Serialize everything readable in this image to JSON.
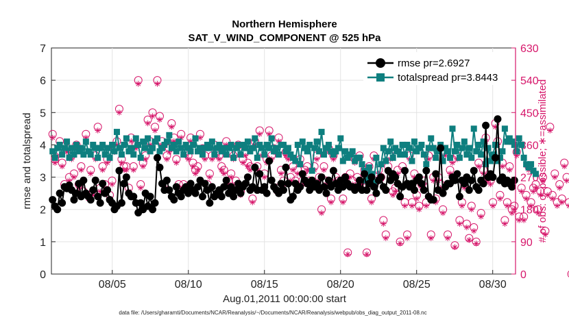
{
  "chart_data": {
    "type": "line",
    "title": "Northern Hemisphere",
    "subtitle": "SAT_V_WIND_COMPONENT @ 525 hPa",
    "xlabel": "Aug.01,2011 00:00:00 start",
    "ylabel": "rmse and totalspread",
    "y2label": "# of obs: o=possible; ∗=assimilated",
    "x_ticks": [
      "08/05",
      "08/10",
      "08/15",
      "08/20",
      "08/25",
      "08/30"
    ],
    "x_tick_days": [
      5,
      10,
      15,
      20,
      25,
      30
    ],
    "xlim": [
      1,
      31.5
    ],
    "ylim": [
      0,
      7
    ],
    "y_ticks": [
      "0",
      "1",
      "2",
      "3",
      "4",
      "5",
      "6",
      "7"
    ],
    "y2lim": [
      0,
      630
    ],
    "y2_ticks": [
      "0",
      "90",
      "180",
      "270",
      "360",
      "450",
      "540",
      "630"
    ],
    "footnote": "data file: /Users/gharamti/Documents/NCAR/Reanalysis/~/Documents/NCAR/Reanalysis/webpub/obs_diag_output_2011-08.nc",
    "colors": {
      "rmse": "#000000",
      "totalspread": "#0e7f7f",
      "obs": "#d6166a"
    },
    "series": [
      {
        "name": "rmse pr=2.6927",
        "values": [
          2.3,
          2.1,
          2.0,
          2.5,
          2.2,
          2.7,
          2.65,
          2.75,
          2.6,
          2.3,
          2.5,
          2.8,
          2.4,
          2.9,
          2.5,
          2.4,
          2.3,
          2.6,
          2.9,
          2.4,
          2.2,
          2.8,
          2.5,
          2.6,
          2.3,
          2.2,
          2.0,
          2.1,
          3.2,
          2.2,
          2.8,
          3.0,
          2.5,
          2.4,
          2.4,
          2.2,
          1.9,
          2.2,
          2.0,
          2.5,
          2.1,
          2.4,
          2.0,
          2.2,
          3.6,
          3.3,
          2.8,
          2.6,
          2.9,
          2.6,
          2.4,
          2.3,
          2.7,
          2.5,
          2.4,
          2.6,
          2.7,
          2.5,
          2.8,
          2.6,
          2.5,
          2.7,
          2.9,
          2.4,
          2.8,
          2.6,
          2.2,
          2.7,
          2.4,
          2.5,
          2.6,
          2.4,
          2.7,
          2.9,
          2.5,
          2.7,
          2.4,
          2.6,
          2.8,
          2.5,
          2.7,
          2.8,
          3.0,
          2.6,
          2.7,
          3.3,
          2.6,
          3.1,
          2.6,
          2.7,
          2.5,
          3.5,
          2.9,
          2.7,
          2.6,
          2.5,
          2.8,
          2.6,
          3.3,
          2.8,
          2.3,
          2.4,
          2.8,
          2.6,
          2.7,
          3.1,
          2.9,
          2.8,
          2.6,
          2.9,
          2.7,
          2.8,
          2.6,
          3.0,
          2.7,
          2.5,
          2.9,
          2.7,
          3.2,
          2.8,
          2.6,
          2.9,
          2.7,
          3.0,
          2.8,
          2.7,
          2.7,
          2.6,
          2.7,
          2.9,
          2.6,
          3.1,
          2.6,
          2.8,
          3.0,
          2.7,
          2.5,
          2.9,
          3.0,
          2.7,
          2.6,
          3.2,
          2.9,
          3.1,
          3.0,
          2.8,
          2.4,
          2.7,
          3.2,
          2.8,
          2.7,
          2.8,
          2.6,
          2.9,
          3.0,
          2.8,
          2.6,
          3.2,
          2.4,
          2.3,
          2.3,
          3.1,
          2.6,
          3.9,
          2.5,
          2.7,
          2.8,
          2.8,
          3.0,
          2.9,
          3.1,
          2.4,
          2.9,
          2.8,
          3.0,
          2.6,
          2.9,
          3.2,
          2.7,
          2.6,
          2.9,
          2.8,
          4.6,
          3.0,
          3.1,
          3.0,
          3.6,
          4.8,
          2.9,
          3.0,
          2.8,
          2.9,
          2.8,
          2.7,
          2.9
        ]
      },
      {
        "name": "totalspread pr=3.8443",
        "values": [
          3.8,
          3.6,
          3.9,
          4.0,
          3.7,
          3.9,
          4.1,
          3.6,
          3.9,
          3.7,
          4.0,
          3.8,
          3.9,
          3.7,
          4.1,
          3.8,
          3.7,
          4.0,
          3.9,
          3.6,
          3.9,
          4.0,
          3.7,
          3.9,
          3.6,
          4.0,
          3.8,
          4.4,
          3.9,
          3.7,
          4.0,
          4.2,
          3.8,
          3.9,
          3.7,
          4.2,
          4.0,
          3.6,
          4.1,
          3.9,
          4.2,
          3.8,
          3.9,
          4.1,
          4.2,
          3.8,
          3.9,
          4.0,
          4.1,
          4.3,
          3.9,
          4.0,
          3.8,
          4.1,
          3.9,
          3.7,
          4.0,
          3.9,
          3.8,
          4.0,
          4.2,
          3.8,
          3.9,
          3.7,
          3.9,
          4.0,
          3.9,
          4.1,
          3.7,
          3.9,
          4.0,
          3.8,
          3.9,
          3.7,
          3.9,
          4.0,
          3.6,
          3.9,
          4.0,
          3.7,
          4.0,
          3.9,
          4.1,
          3.8,
          3.9,
          4.2,
          3.6,
          4.0,
          3.9,
          3.7,
          4.0,
          3.9,
          4.2,
          3.8,
          3.9,
          3.7,
          4.0,
          4.0,
          3.8,
          3.9,
          3.7,
          3.6,
          3.5,
          4.0,
          3.4,
          4.1,
          3.9,
          3.8,
          4.0,
          3.2,
          3.9,
          4.1,
          3.8,
          4.4,
          3.7,
          3.9,
          4.0,
          3.8,
          3.7,
          3.8,
          3.9,
          4.2,
          3.5,
          3.8,
          3.6,
          3.7,
          3.8,
          3.5,
          3.6,
          3.6,
          3.4,
          3.2,
          2.9,
          3.3,
          3.1,
          2.8,
          3.6,
          2.9,
          3.4,
          3.9,
          3.5,
          3.8,
          4.1,
          3.6,
          3.9,
          3.8,
          3.7,
          4.0,
          3.7,
          4.0,
          3.9,
          3.5,
          4.1,
          3.8,
          3.9,
          4.0,
          3.7,
          3.4,
          3.9,
          4.2,
          3.9,
          3.6,
          3.8,
          4.0,
          3.5,
          3.9,
          3.8,
          3.6,
          4.5,
          3.8,
          4.0,
          3.6,
          3.9,
          4.1,
          3.7,
          3.9,
          3.6,
          4.5,
          3.8,
          4.0,
          3.7,
          4.1,
          3.4,
          3.9,
          3.5,
          3.7,
          4.0,
          3.5,
          3.6,
          3.8,
          4.5,
          4.1,
          4.2,
          4.1,
          4.0,
          3.8,
          4.2,
          4.0,
          3.6,
          3.4,
          3.3,
          3.4,
          3.2,
          3.1
        ]
      },
      {
        "name": "obs_possible",
        "axis": "right",
        "values": [
          390,
          320,
          340,
          370,
          310,
          250,
          350,
          270,
          330,
          280,
          360,
          250,
          300,
          230,
          390,
          220,
          290,
          230,
          330,
          410,
          240,
          300,
          250,
          320,
          220,
          260,
          350,
          370,
          460,
          320,
          300,
          300,
          240,
          380,
          300,
          360,
          540,
          250,
          310,
          330,
          430,
          370,
          450,
          410,
          540,
          440,
          370,
          250,
          330,
          350,
          420,
          380,
          320,
          250,
          390,
          250,
          340,
          330,
          380,
          310,
          290,
          300,
          390,
          350,
          330,
          250,
          280,
          330,
          360,
          340,
          330,
          300,
          290,
          370,
          260,
          280,
          330,
          260,
          360,
          230,
          320,
          340,
          310,
          300,
          210,
          370,
          300,
          400,
          340,
          280,
          320,
          400,
          330,
          350,
          240,
          380,
          290,
          260,
          340,
          330,
          270,
          300,
          260,
          290,
          320,
          260,
          290,
          300,
          260,
          250,
          300,
          330,
          270,
          180,
          300,
          260,
          350,
          210,
          330,
          270,
          260,
          250,
          210,
          270,
          60,
          280,
          260,
          320,
          270,
          330,
          260,
          290,
          60,
          300,
          210,
          330,
          260,
          290,
          270,
          150,
          110,
          300,
          330,
          230,
          240,
          290,
          90,
          300,
          200,
          110,
          330,
          200,
          280,
          220,
          190,
          250,
          260,
          200,
          330,
          110,
          270,
          210,
          270,
          250,
          180,
          340,
          110,
          290,
          320,
          80,
          330,
          150,
          200,
          250,
          140,
          100,
          190,
          130,
          90,
          310,
          170,
          290,
          380,
          270,
          260,
          200,
          420,
          370,
          220,
          310,
          150,
          200,
          300,
          180,
          190,
          340,
          160,
          240,
          160,
          220,
          300,
          200,
          240,
          250,
          180,
          230,
          270,
          120,
          230,
          410,
          220,
          280,
          200,
          250,
          210,
          310,
          270,
          200,
          0
        ]
      },
      {
        "name": "obs_assimilated",
        "axis": "right",
        "values": [
          380,
          310,
          330,
          360,
          300,
          240,
          340,
          260,
          320,
          270,
          350,
          240,
          290,
          220,
          380,
          210,
          280,
          220,
          320,
          400,
          230,
          290,
          240,
          310,
          210,
          250,
          340,
          360,
          450,
          310,
          290,
          290,
          230,
          370,
          290,
          350,
          530,
          240,
          300,
          320,
          420,
          360,
          440,
          400,
          530,
          430,
          360,
          240,
          320,
          340,
          410,
          370,
          310,
          240,
          380,
          240,
          330,
          320,
          370,
          300,
          280,
          290,
          380,
          340,
          320,
          240,
          270,
          320,
          350,
          330,
          320,
          290,
          280,
          360,
          250,
          270,
          320,
          250,
          350,
          220,
          310,
          330,
          300,
          290,
          200,
          360,
          290,
          390,
          330,
          270,
          310,
          390,
          320,
          340,
          230,
          370,
          280,
          250,
          330,
          320,
          260,
          290,
          250,
          280,
          310,
          250,
          280,
          290,
          250,
          240,
          290,
          320,
          260,
          170,
          290,
          250,
          340,
          200,
          320,
          260,
          250,
          240,
          200,
          260,
          55,
          270,
          250,
          310,
          260,
          320,
          250,
          280,
          55,
          290,
          200,
          320,
          250,
          280,
          260,
          140,
          100,
          290,
          320,
          220,
          230,
          280,
          85,
          290,
          190,
          100,
          320,
          190,
          270,
          210,
          180,
          240,
          250,
          190,
          320,
          100,
          260,
          200,
          260,
          240,
          170,
          330,
          100,
          280,
          310,
          75,
          320,
          140,
          190,
          240,
          130,
          95,
          180,
          120,
          85,
          300,
          160,
          280,
          370,
          260,
          250,
          190,
          410,
          360,
          210,
          300,
          140,
          190,
          290,
          170,
          180,
          330,
          150,
          230,
          150,
          210,
          290,
          190,
          230,
          240,
          170,
          220,
          260,
          110,
          220,
          400,
          210,
          270,
          190,
          240,
          200,
          300,
          260,
          190,
          0
        ]
      }
    ]
  }
}
